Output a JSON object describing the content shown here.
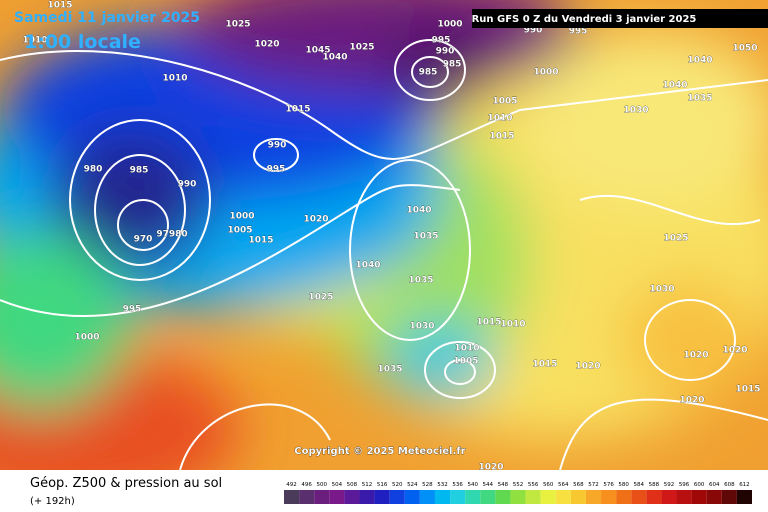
{
  "header": {
    "date": "Samedi 11 janvier 2025",
    "time": "1:00 locale",
    "run": "Run GFS 0 Z du Vendredi 3 janvier 2025"
  },
  "isobar_labels": [
    1010,
    1015,
    1025,
    1020,
    1045,
    1040,
    1025,
    1000,
    995,
    990,
    985,
    985,
    1000,
    990,
    995,
    1005,
    1010,
    1015,
    1010,
    1015,
    990,
    995,
    980,
    985,
    990,
    1000,
    1005,
    1015,
    1020,
    970,
    97980,
    995,
    1000,
    1040,
    1035,
    1040,
    1035,
    1025,
    1030,
    1015,
    1010,
    1010,
    1005,
    1015,
    1020,
    1035,
    1020,
    1025,
    1030,
    1020,
    1020,
    1015,
    1020,
    1050,
    1040,
    1035,
    1030,
    1040
  ],
  "copyright": "Copyright © 2025 Meteociel.fr",
  "footer": {
    "title": "Géop. Z500 & pression au sol",
    "lead": "(+ 192h)"
  },
  "scale": {
    "labels": [
      492,
      496,
      500,
      504,
      508,
      512,
      516,
      520,
      524,
      528,
      532,
      536,
      540,
      544,
      548,
      552,
      556,
      560,
      564,
      568,
      572,
      576,
      580,
      584,
      588,
      592,
      596,
      600,
      604,
      608,
      612
    ],
    "colors": [
      "#4b3b5a",
      "#5a2f6e",
      "#6a1f7e",
      "#7a1a8a",
      "#5a1a9a",
      "#3a1aaa",
      "#2020c0",
      "#1040e0",
      "#0060f0",
      "#0090f8",
      "#00b8f0",
      "#20d0e0",
      "#30d8b0",
      "#40d880",
      "#60d850",
      "#90e040",
      "#c0e840",
      "#e8f040",
      "#f8e040",
      "#f8c830",
      "#f8a828",
      "#f89020",
      "#f07018",
      "#e85018",
      "#e03018",
      "#d01818",
      "#b81010",
      "#a00808",
      "#880808",
      "#600808",
      "#200404"
    ]
  }
}
